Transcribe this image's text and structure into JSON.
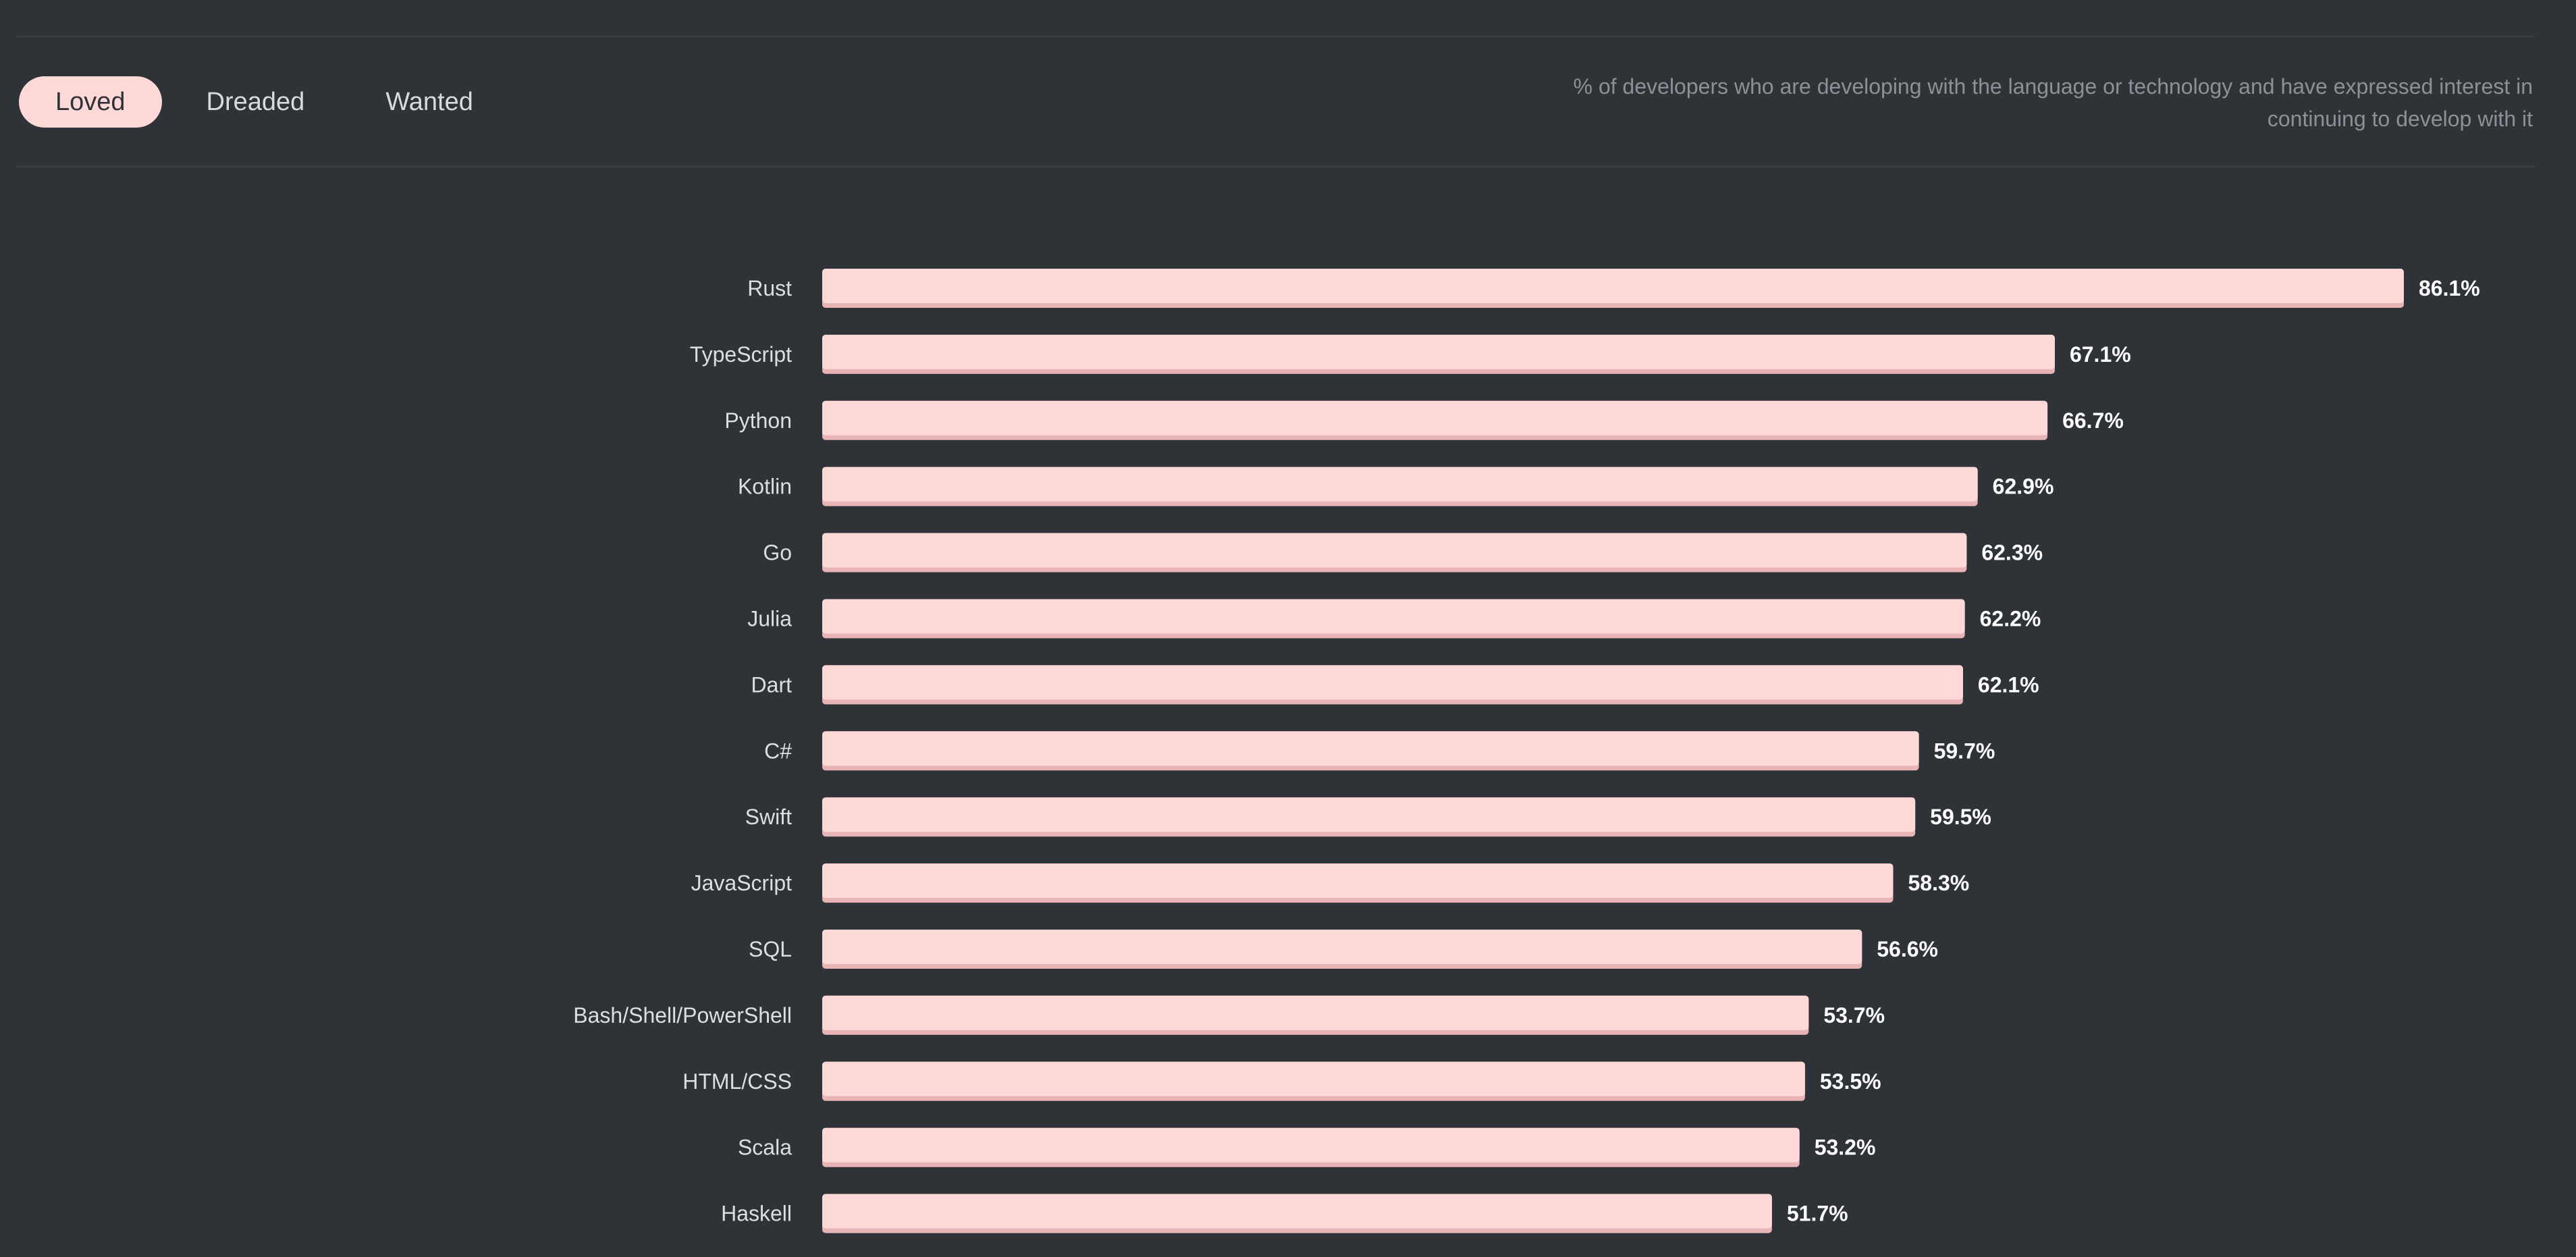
{
  "tabs": [
    {
      "label": "Loved",
      "active": true
    },
    {
      "label": "Dreaded",
      "active": false
    },
    {
      "label": "Wanted",
      "active": false
    }
  ],
  "description": "% of developers who are developing with the language or technology and have expressed interest in continuing to develop with it",
  "colors": {
    "background": "#2f3337",
    "bar": "#ffd8d8",
    "bar_shadow": "#e8b4b6",
    "active_tab": "#ffd8d8"
  },
  "chart_data": {
    "type": "bar",
    "orientation": "horizontal",
    "title": "",
    "xlabel": "",
    "ylabel": "",
    "xlim": [
      0,
      86.1
    ],
    "unit": "%",
    "grid": false,
    "categories": [
      "Rust",
      "TypeScript",
      "Python",
      "Kotlin",
      "Go",
      "Julia",
      "Dart",
      "C#",
      "Swift",
      "JavaScript",
      "SQL",
      "Bash/Shell/PowerShell",
      "HTML/CSS",
      "Scala",
      "Haskell"
    ],
    "values": [
      86.1,
      67.1,
      66.7,
      62.9,
      62.3,
      62.2,
      62.1,
      59.7,
      59.5,
      58.3,
      56.6,
      53.7,
      53.5,
      53.2,
      51.7
    ],
    "value_labels": [
      "86.1%",
      "67.1%",
      "66.7%",
      "62.9%",
      "62.3%",
      "62.2%",
      "62.1%",
      "59.7%",
      "59.5%",
      "58.3%",
      "56.6%",
      "53.7%",
      "53.5%",
      "53.2%",
      "51.7%"
    ]
  }
}
